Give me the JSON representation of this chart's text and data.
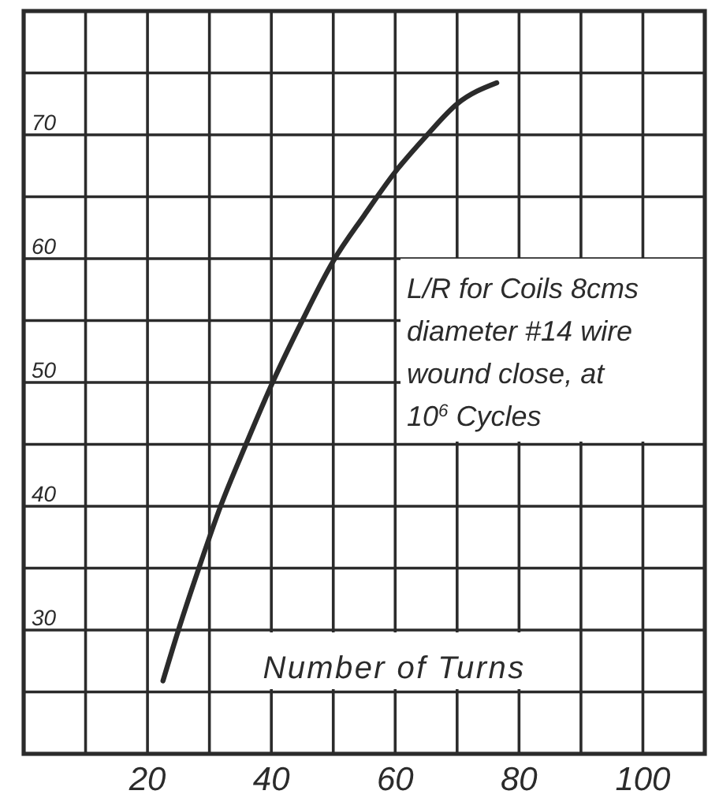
{
  "chart_data": {
    "type": "line",
    "title": "L/R for Coils  8cms\ndiameter #14 wire\nwound close, at\n10$^{6}$ Cycles",
    "xlabel": "Number of Turns",
    "x": [
      22.5,
      25,
      28.3,
      31.8,
      35.9,
      40.2,
      45,
      50,
      55,
      60,
      65,
      70,
      76.4
    ],
    "values": [
      25.9,
      30,
      35,
      40,
      45,
      50,
      55,
      59.8,
      63.5,
      67,
      69.9,
      72.5,
      74.2
    ],
    "color": "#2b2b2b",
    "xlim": [
      0,
      110
    ],
    "ylim": [
      20,
      80
    ],
    "xticks": [
      {
        "value": 10,
        "label": null
      },
      20,
      {
        "value": 30,
        "label": null
      },
      40,
      {
        "value": 50,
        "label": null
      },
      60,
      {
        "value": 70,
        "label": null
      },
      80,
      {
        "value": 90,
        "label": null
      },
      100
    ],
    "yticks": [
      {
        "value": 25,
        "label": null
      },
      30,
      {
        "value": 35,
        "label": null
      },
      40,
      {
        "value": 45,
        "label": null
      },
      50,
      {
        "value": 55,
        "label": null
      },
      60,
      {
        "value": 65,
        "label": null
      },
      70,
      {
        "value": 75,
        "label": null
      }
    ],
    "grid": true
  }
}
